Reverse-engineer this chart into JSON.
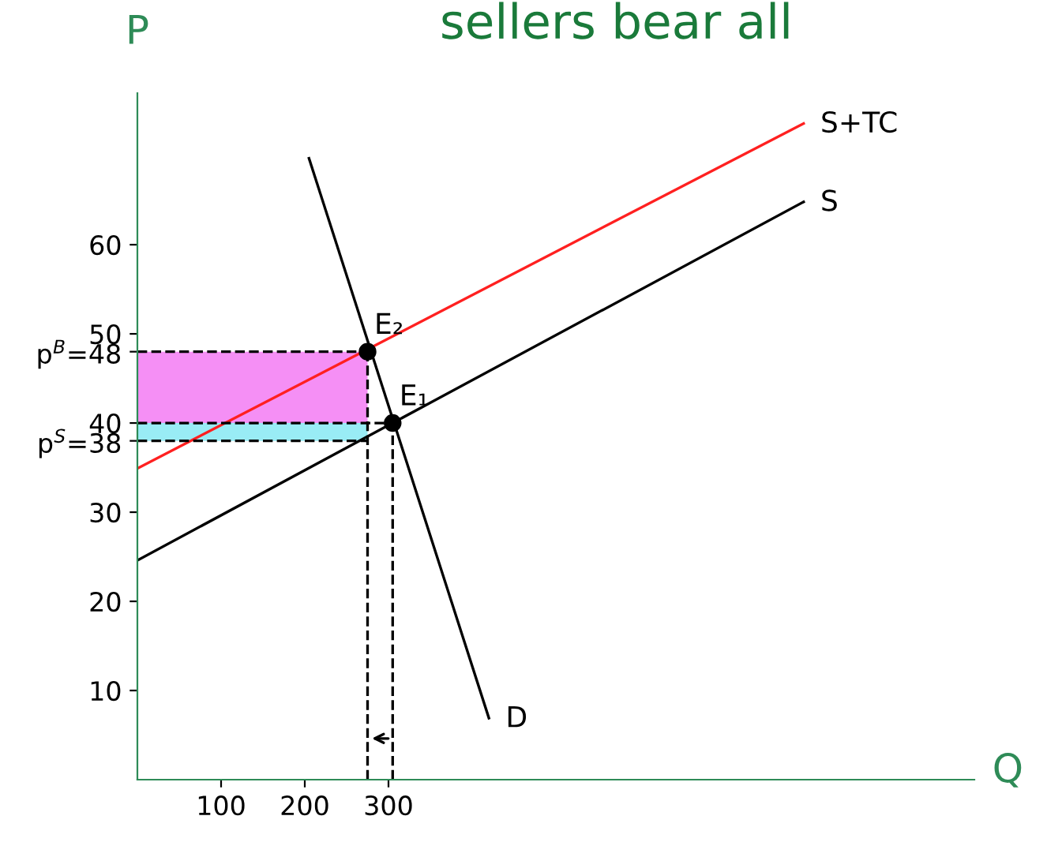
{
  "chart_data": {
    "type": "line",
    "title": "sellers bear all",
    "xlabel": "Q",
    "ylabel": "P",
    "xlim": [
      0,
      1000
    ],
    "ylim": [
      0,
      77
    ],
    "xticks": [
      100,
      200,
      300
    ],
    "yticks": [
      10,
      20,
      30,
      {
        "value": 38,
        "label": "p$^{S}$=38"
      },
      40,
      {
        "value": 48,
        "label": "p$^{B}$=48"
      },
      50,
      60
    ],
    "grid": false,
    "marker": "none",
    "bands": [
      {
        "axis": "y",
        "from": 40,
        "to": 48,
        "color": "#ee44ee"
      },
      {
        "axis": "y",
        "from": 38,
        "to": 40,
        "color": "#55e0ee"
      }
    ],
    "series": [
      {
        "x": [
          0,
          796
        ],
        "values": [
          24.6,
          64.8
        ],
        "color": "#000000"
      },
      {
        "x": [
          0,
          796
        ],
        "values": [
          34.9,
          73.6
        ],
        "color": "#ff2020"
      },
      {
        "x": [
          205,
          420
        ],
        "values": [
          69.7,
          6.9
        ],
        "color": "#000000"
      },
      {
        "x": [
          0,
          305
        ],
        "values": [
          40,
          40
        ],
        "color": "#000000",
        "line_style": "dashed"
      },
      {
        "x": [
          0,
          275
        ],
        "values": [
          48,
          48
        ],
        "color": "#000000",
        "line_style": "dashed"
      },
      {
        "x": [
          0,
          275
        ],
        "values": [
          38,
          38
        ],
        "color": "#000000",
        "line_style": "dashed"
      },
      {
        "x": [
          275,
          275
        ],
        "values": [
          0,
          48
        ],
        "color": "#000000",
        "line_style": "dashed"
      },
      {
        "x": [
          305,
          305
        ],
        "values": [
          0,
          40
        ],
        "color": "#000000",
        "line_style": "dashed"
      },
      {
        "type": "scatter",
        "x": [
          275,
          305
        ],
        "values": [
          48,
          40
        ],
        "color": "#000000",
        "marker": "circle"
      }
    ],
    "annotations": [
      "E₂",
      "E₁",
      "S",
      "S+TC",
      "D"
    ]
  }
}
